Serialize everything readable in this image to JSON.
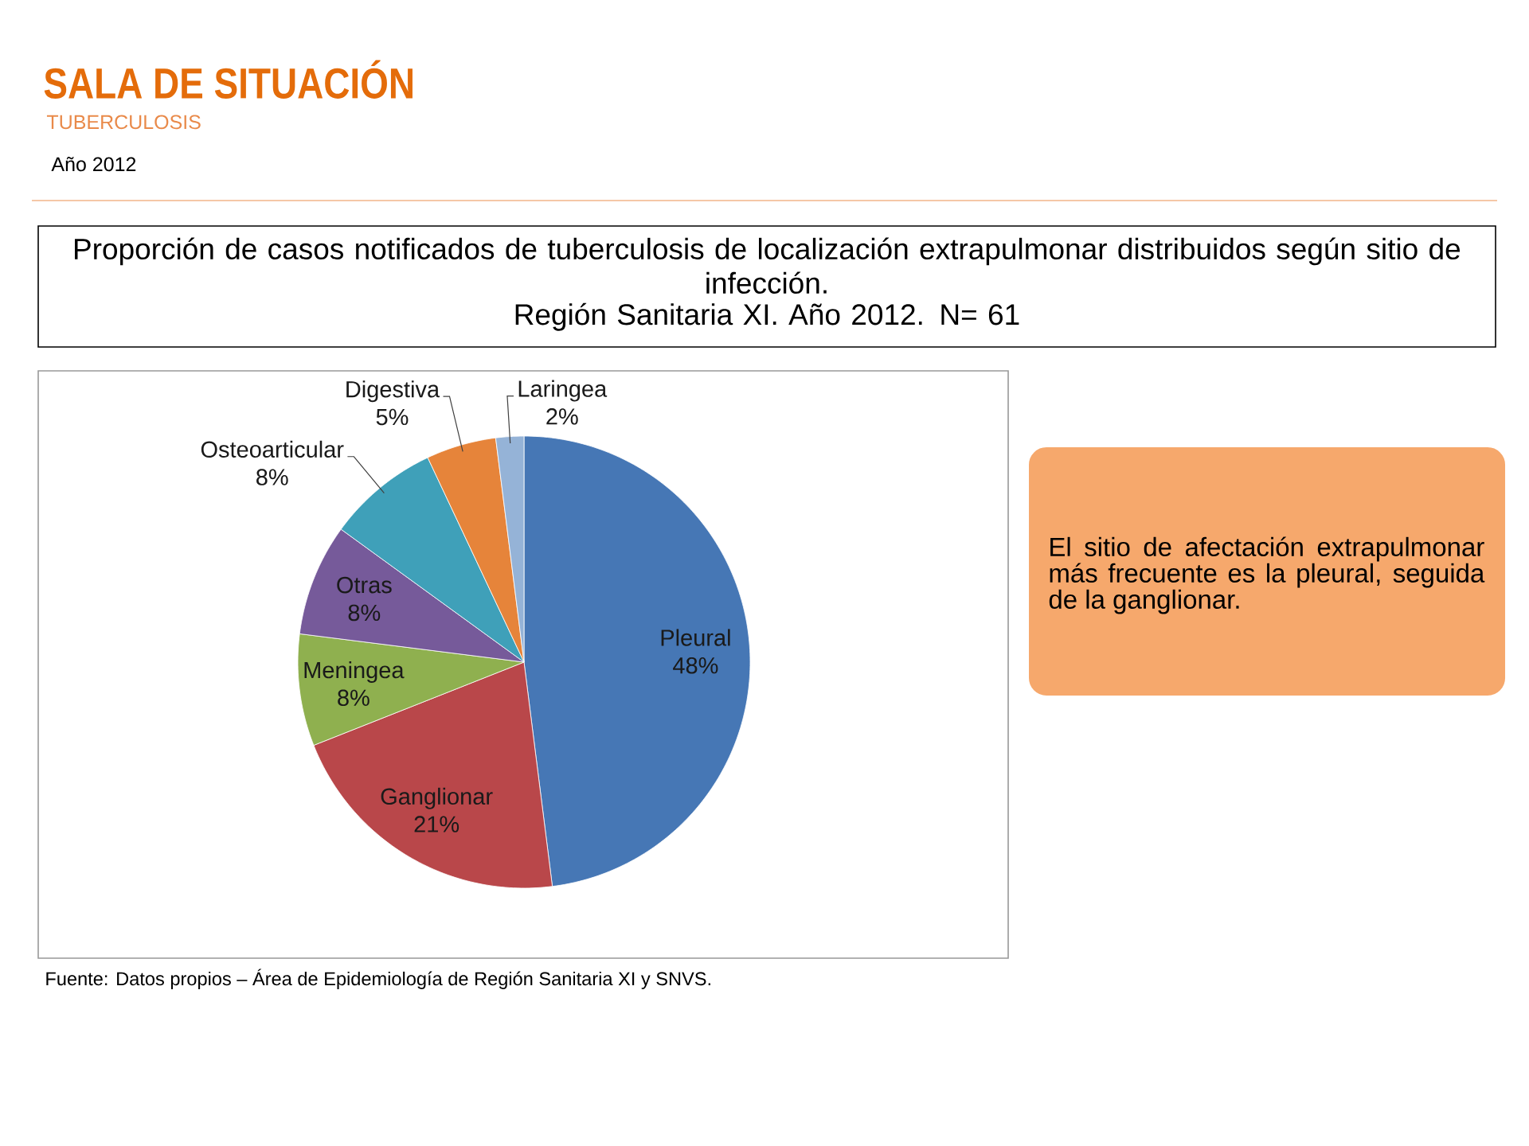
{
  "chart_data": {
    "type": "pie",
    "title": "Proporción de casos notificados de tuberculosis de localización extrapulmonar distribuidos según sitio de infección.",
    "subtitle": "Región Sanitaria XI. Año 2012. N= 61",
    "categories": [
      "Pleural",
      "Ganglionar",
      "Meningea",
      "Otras",
      "Osteoarticular",
      "Digestiva",
      "Laringea"
    ],
    "values": [
      48,
      21,
      8,
      8,
      8,
      5,
      2
    ],
    "value_labels": [
      "48%",
      "21%",
      "8%",
      "8%",
      "8%",
      "5%",
      "2%"
    ],
    "colors": [
      "#4677B5",
      "#B9474A",
      "#8FB04F",
      "#765A9A",
      "#3FA0B9",
      "#E6843A",
      "#95B3D7"
    ],
    "annotations": [
      "SALA DE SITUACIÓN",
      "TUBERCULOSIS",
      "Año 2012",
      "El sitio de afectación extrapulmonar más frecuente es la pleural, seguida de la ganglionar.",
      "Fuente: Datos propios – Área de Epidemiología de Región Sanitaria XI y SNVS."
    ]
  }
}
